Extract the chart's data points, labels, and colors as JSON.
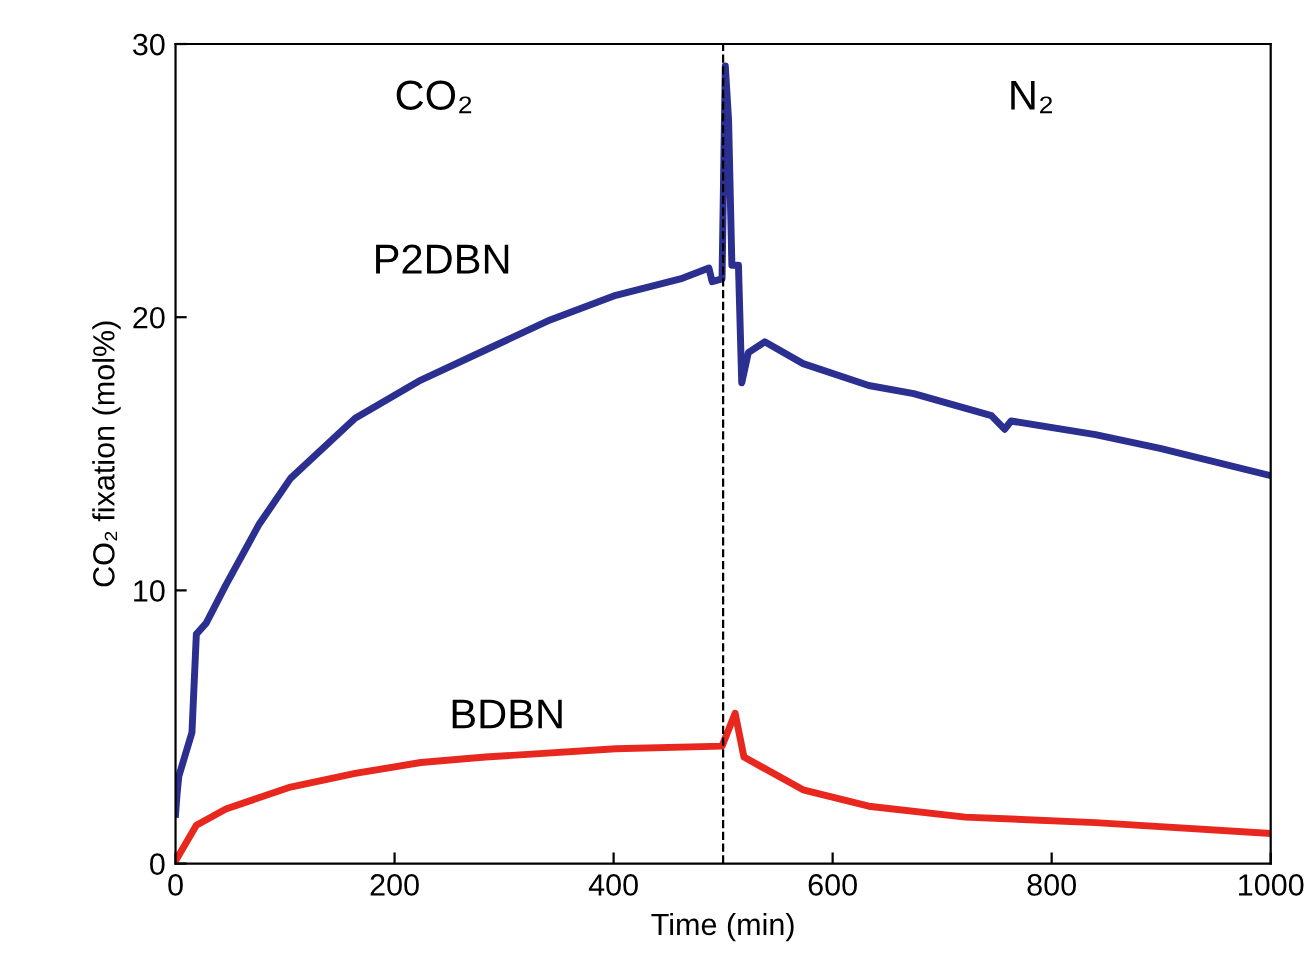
{
  "chart_data": {
    "type": "line",
    "xlabel": "Time (min)",
    "ylabel": "CO₂ fixation (mol%)",
    "xlim": [
      0,
      1000
    ],
    "ylim": [
      0,
      30
    ],
    "xticks": [
      0,
      200,
      400,
      600,
      800,
      1000
    ],
    "yticks": [
      0,
      10,
      20,
      30
    ],
    "grid": false,
    "legend": false,
    "marker": "none",
    "line_style": "solid",
    "annotations": [
      "CO₂",
      "N₂"
    ],
    "ref_lines": [
      {
        "axis": "x",
        "value": 500,
        "color": "#000000",
        "line_style": "dashed"
      }
    ],
    "series": [
      {
        "name": "P2DBN",
        "color": "#2b2f8f",
        "x": [
          0,
          1.5,
          3,
          15,
          19,
          28,
          46,
          76,
          105,
          164,
          224,
          283,
          342,
          402,
          461,
          487,
          490,
          499,
          502,
          505,
          508,
          514,
          517,
          523,
          538,
          573,
          633,
          674,
          745,
          757,
          763,
          840,
          899,
          1000
        ],
        "values": [
          1.8,
          2.6,
          3.2,
          4.8,
          8.4,
          8.8,
          10.2,
          12.4,
          14.1,
          16.3,
          17.7,
          18.8,
          19.9,
          20.8,
          21.4,
          21.8,
          21.3,
          21.4,
          29.2,
          27.2,
          21.9,
          21.9,
          17.6,
          18.7,
          19.1,
          18.3,
          17.5,
          17.2,
          16.4,
          15.9,
          16.2,
          15.7,
          15.2,
          14.2
        ]
      },
      {
        "name": "BDBN",
        "color": "#e8281e",
        "x": [
          0,
          19,
          46,
          105,
          164,
          224,
          283,
          402,
          499,
          511,
          519,
          573,
          633,
          721,
          840,
          1000
        ],
        "values": [
          0.1,
          1.4,
          2.0,
          2.8,
          3.3,
          3.7,
          3.9,
          4.2,
          4.3,
          5.5,
          3.9,
          2.7,
          2.1,
          1.7,
          1.5,
          1.1
        ]
      }
    ]
  }
}
